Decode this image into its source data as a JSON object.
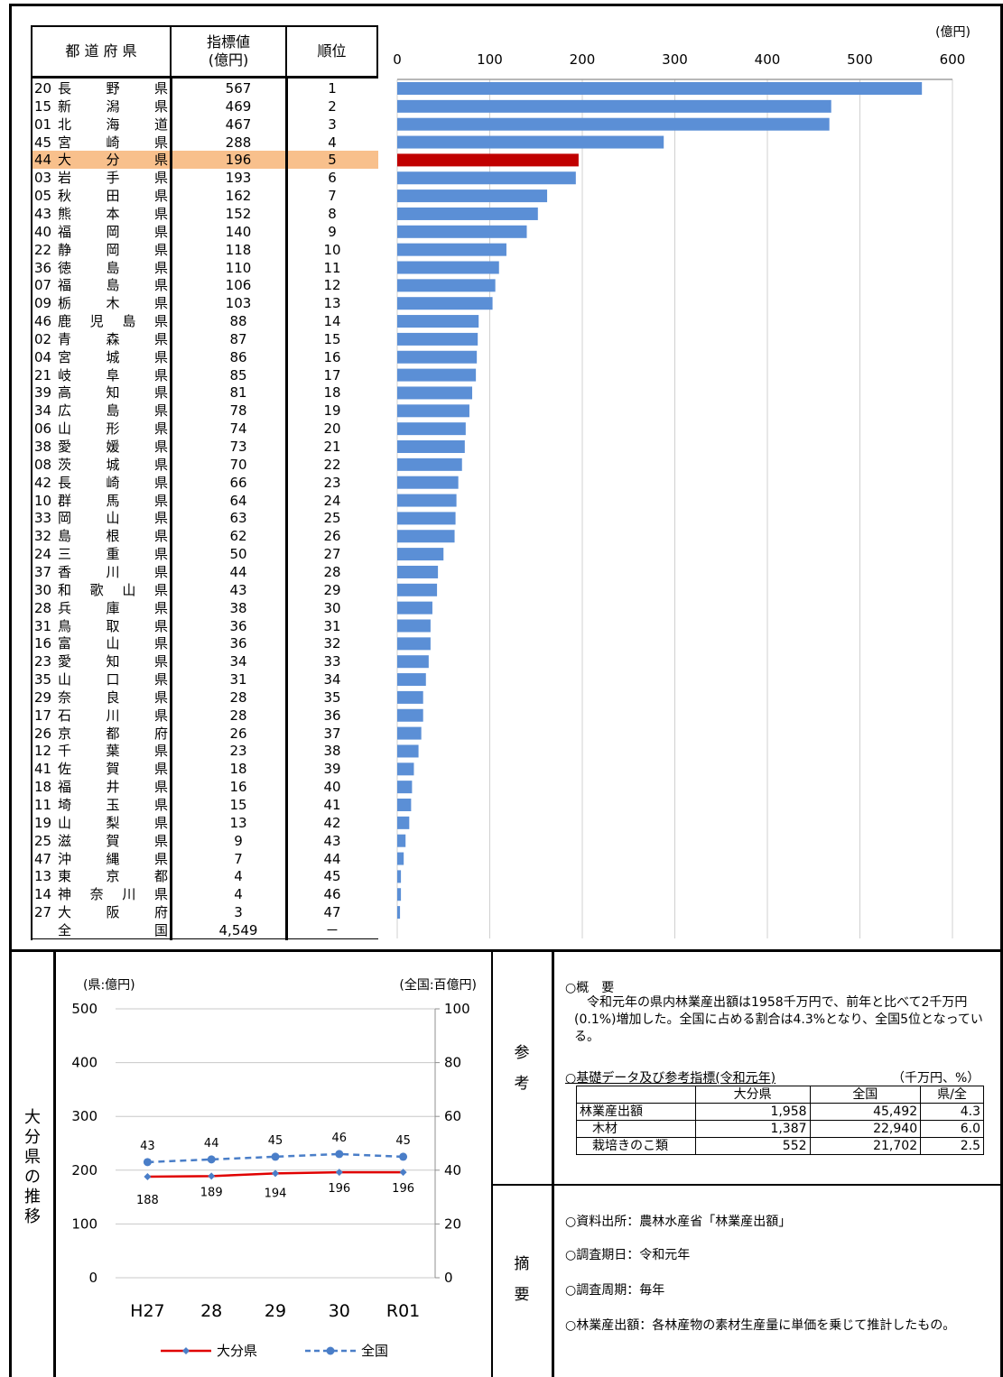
{
  "table": {
    "header_pref": "都 道 府 県",
    "header_value": "指標値\n(億円)",
    "header_rank": "順位",
    "rows": [
      {
        "code": "20",
        "name": "長野県",
        "value": "567",
        "rank": "1"
      },
      {
        "code": "15",
        "name": "新潟県",
        "value": "469",
        "rank": "2"
      },
      {
        "code": "01",
        "name": "北海道",
        "value": "467",
        "rank": "3"
      },
      {
        "code": "45",
        "name": "宮崎県",
        "value": "288",
        "rank": "4"
      },
      {
        "code": "44",
        "name": "大分県",
        "value": "196",
        "rank": "5",
        "highlight": true
      },
      {
        "code": "03",
        "name": "岩手県",
        "value": "193",
        "rank": "6"
      },
      {
        "code": "05",
        "name": "秋田県",
        "value": "162",
        "rank": "7"
      },
      {
        "code": "43",
        "name": "熊本県",
        "value": "152",
        "rank": "8"
      },
      {
        "code": "40",
        "name": "福岡県",
        "value": "140",
        "rank": "9"
      },
      {
        "code": "22",
        "name": "静岡県",
        "value": "118",
        "rank": "10"
      },
      {
        "code": "36",
        "name": "徳島県",
        "value": "110",
        "rank": "11"
      },
      {
        "code": "07",
        "name": "福島県",
        "value": "106",
        "rank": "12"
      },
      {
        "code": "09",
        "name": "栃木県",
        "value": "103",
        "rank": "13"
      },
      {
        "code": "46",
        "name": "鹿児島県",
        "value": "88",
        "rank": "14"
      },
      {
        "code": "02",
        "name": "青森県",
        "value": "87",
        "rank": "15"
      },
      {
        "code": "04",
        "name": "宮城県",
        "value": "86",
        "rank": "16"
      },
      {
        "code": "21",
        "name": "岐阜県",
        "value": "85",
        "rank": "17"
      },
      {
        "code": "39",
        "name": "高知県",
        "value": "81",
        "rank": "18"
      },
      {
        "code": "34",
        "name": "広島県",
        "value": "78",
        "rank": "19"
      },
      {
        "code": "06",
        "name": "山形県",
        "value": "74",
        "rank": "20"
      },
      {
        "code": "38",
        "name": "愛媛県",
        "value": "73",
        "rank": "21"
      },
      {
        "code": "08",
        "name": "茨城県",
        "value": "70",
        "rank": "22"
      },
      {
        "code": "42",
        "name": "長崎県",
        "value": "66",
        "rank": "23"
      },
      {
        "code": "10",
        "name": "群馬県",
        "value": "64",
        "rank": "24"
      },
      {
        "code": "33",
        "name": "岡山県",
        "value": "63",
        "rank": "25"
      },
      {
        "code": "32",
        "name": "島根県",
        "value": "62",
        "rank": "26"
      },
      {
        "code": "24",
        "name": "三重県",
        "value": "50",
        "rank": "27"
      },
      {
        "code": "37",
        "name": "香川県",
        "value": "44",
        "rank": "28"
      },
      {
        "code": "30",
        "name": "和歌山県",
        "value": "43",
        "rank": "29"
      },
      {
        "code": "28",
        "name": "兵庫県",
        "value": "38",
        "rank": "30"
      },
      {
        "code": "31",
        "name": "鳥取県",
        "value": "36",
        "rank": "31"
      },
      {
        "code": "16",
        "name": "富山県",
        "value": "36",
        "rank": "32"
      },
      {
        "code": "23",
        "name": "愛知県",
        "value": "34",
        "rank": "33"
      },
      {
        "code": "35",
        "name": "山口県",
        "value": "31",
        "rank": "34"
      },
      {
        "code": "29",
        "name": "奈良県",
        "value": "28",
        "rank": "35"
      },
      {
        "code": "17",
        "name": "石川県",
        "value": "28",
        "rank": "36"
      },
      {
        "code": "26",
        "name": "京都府",
        "value": "26",
        "rank": "37"
      },
      {
        "code": "12",
        "name": "千葉県",
        "value": "23",
        "rank": "38"
      },
      {
        "code": "41",
        "name": "佐賀県",
        "value": "18",
        "rank": "39"
      },
      {
        "code": "18",
        "name": "福井県",
        "value": "16",
        "rank": "40"
      },
      {
        "code": "11",
        "name": "埼玉県",
        "value": "15",
        "rank": "41"
      },
      {
        "code": "19",
        "name": "山梨県",
        "value": "13",
        "rank": "42"
      },
      {
        "code": "25",
        "name": "滋賀県",
        "value": "9",
        "rank": "43"
      },
      {
        "code": "47",
        "name": "沖縄県",
        "value": "7",
        "rank": "44"
      },
      {
        "code": "13",
        "name": "東京都",
        "value": "4",
        "rank": "45"
      },
      {
        "code": "14",
        "name": "神奈川県",
        "value": "4",
        "rank": "46"
      },
      {
        "code": "27",
        "name": "大阪府",
        "value": "3",
        "rank": "47"
      },
      {
        "code": "",
        "name": "全国",
        "value": "4,549",
        "rank": "－"
      }
    ]
  },
  "colors": {
    "bar": "#5b8fd6",
    "highlight_bar": "#c00000",
    "highlight_row": "#f8c08c",
    "line_pref": "#e00000",
    "line_nat": "#4a7ec8"
  },
  "chart_data": [
    {
      "type": "bar",
      "orientation": "horizontal",
      "unit_label": "(億円)",
      "xlim": [
        0,
        600
      ],
      "ticks": [
        0,
        100,
        200,
        300,
        400,
        500,
        600
      ],
      "grid": true,
      "categories": [
        "長野県",
        "新潟県",
        "北海道",
        "宮崎県",
        "大分県",
        "岩手県",
        "秋田県",
        "熊本県",
        "福岡県",
        "静岡県",
        "徳島県",
        "福島県",
        "栃木県",
        "鹿児島県",
        "青森県",
        "宮城県",
        "岐阜県",
        "高知県",
        "広島県",
        "山形県",
        "愛媛県",
        "茨城県",
        "長崎県",
        "群馬県",
        "岡山県",
        "島根県",
        "三重県",
        "香川県",
        "和歌山県",
        "兵庫県",
        "鳥取県",
        "富山県",
        "愛知県",
        "山口県",
        "奈良県",
        "石川県",
        "京都府",
        "千葉県",
        "佐賀県",
        "福井県",
        "埼玉県",
        "山梨県",
        "滋賀県",
        "沖縄県",
        "東京都",
        "神奈川県",
        "大阪府"
      ],
      "values": [
        567,
        469,
        467,
        288,
        196,
        193,
        162,
        152,
        140,
        118,
        110,
        106,
        103,
        88,
        87,
        86,
        85,
        81,
        78,
        74,
        73,
        70,
        66,
        64,
        63,
        62,
        50,
        44,
        43,
        38,
        36,
        36,
        34,
        31,
        28,
        28,
        26,
        23,
        18,
        16,
        15,
        13,
        9,
        7,
        4,
        4,
        3
      ],
      "highlight_index": 4
    },
    {
      "type": "line",
      "left_unit": "(県:億円)",
      "right_unit": "(全国:百億円)",
      "categories": [
        "H27",
        "28",
        "29",
        "30",
        "R01"
      ],
      "left_ylim": [
        0,
        500
      ],
      "left_ticks": [
        0,
        100,
        200,
        300,
        400,
        500
      ],
      "right_ylim": [
        0,
        100
      ],
      "right_ticks": [
        0,
        20,
        40,
        60,
        80,
        100
      ],
      "series": [
        {
          "name": "大分県",
          "axis": "left",
          "values": [
            188,
            189,
            194,
            196,
            196
          ]
        },
        {
          "name": "全国",
          "axis": "right",
          "values": [
            43,
            44,
            45,
            46,
            45
          ]
        }
      ]
    }
  ],
  "left_label": "大分県の推移",
  "ref_label": "参考",
  "summary_label": "摘要",
  "overview": {
    "heading": "○概　要",
    "text": "　令和元年の県内林業産出額は1958千万円で、前年と比べて2千万円(0.1%)増加した。全国に占める割合は4.3%となり、全国5位となっている。"
  },
  "basic": {
    "heading": "○基礎データ及び参考指標(令和元年)",
    "unit": "（千万円、%）",
    "cols": [
      "",
      "大分県",
      "全国",
      "県/全"
    ],
    "rows": [
      [
        "林業産出額",
        "1,958",
        "45,492",
        "4.3"
      ],
      [
        "　木材",
        "1,387",
        "22,940",
        "6.0"
      ],
      [
        "　栽培きのこ類",
        "552",
        "21,702",
        "2.5"
      ]
    ]
  },
  "summary_items": [
    "○資料出所：農林水産省「林業産出額」",
    "○調査期日：令和元年",
    "○調査周期：毎年",
    "○林業産出額：各林産物の素材生産量に単価を乗じて推計したもの。"
  ]
}
